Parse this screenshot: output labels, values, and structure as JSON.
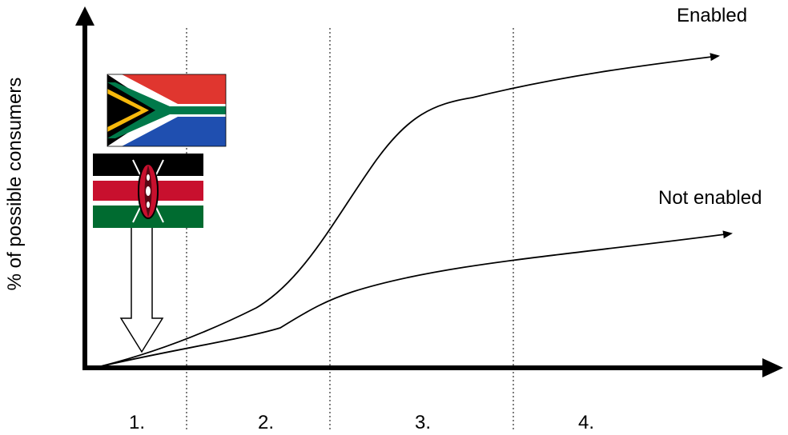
{
  "y_axis_label": "% of possible consumers",
  "curves": [
    {
      "label": "Enabled"
    },
    {
      "label": "Not enabled"
    }
  ],
  "stages": [
    "1.",
    "2.",
    "3.",
    "4."
  ],
  "flags": [
    {
      "icon": "south-africa-flag-icon"
    },
    {
      "icon": "kenya-flag-icon"
    }
  ],
  "colors": {
    "ink": "#000000",
    "za_red": "#e0362f",
    "za_blue": "#1f4fb0",
    "za_green": "#00794a",
    "za_gold": "#f7b90c",
    "ke_red": "#c8102e",
    "ke_green": "#006b30"
  }
}
